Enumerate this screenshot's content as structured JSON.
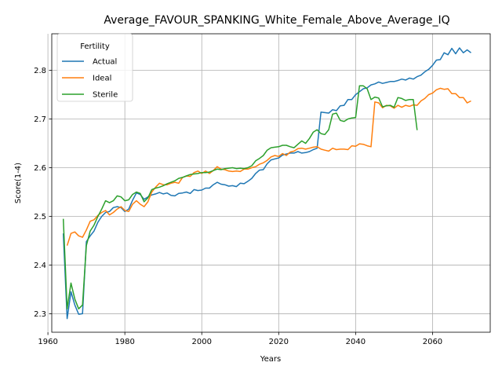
{
  "chart_data": {
    "type": "line",
    "title": "Average_FAVOUR_SPANKING_White_Female_Above_Average_IQ",
    "xlabel": "Years",
    "ylabel": "Score(1-4)",
    "xlim": [
      1961,
      2075
    ],
    "ylim": [
      2.262,
      2.875
    ],
    "xticks": [
      1960,
      1980,
      2000,
      2020,
      2040,
      2060
    ],
    "yticks": [
      2.3,
      2.4,
      2.5,
      2.6,
      2.7,
      2.8
    ],
    "grid": true,
    "legend": {
      "title": "Fertility",
      "position": "top-left"
    },
    "series": [
      {
        "name": "Actual",
        "color": "#1f77b4",
        "x": [
          1964,
          1965,
          1966,
          1967,
          1968,
          1969,
          1970,
          1971,
          1972,
          1973,
          1974,
          1975,
          1976,
          1977,
          1978,
          1979,
          1980,
          1981,
          1982,
          1983,
          1984,
          1985,
          1986,
          1987,
          1988,
          1989,
          1990,
          1991,
          1992,
          1993,
          1994,
          1995,
          1996,
          1997,
          1998,
          1999,
          2000,
          2001,
          2002,
          2003,
          2004,
          2005,
          2006,
          2007,
          2008,
          2009,
          2010,
          2011,
          2012,
          2013,
          2014,
          2015,
          2016,
          2017,
          2018,
          2019,
          2020,
          2021,
          2022,
          2023,
          2024,
          2025,
          2026,
          2027,
          2028,
          2029,
          2030,
          2031,
          2032,
          2033,
          2034,
          2035,
          2036,
          2037,
          2038,
          2039,
          2040,
          2041,
          2042,
          2043,
          2044,
          2045,
          2046,
          2047,
          2048,
          2049,
          2050,
          2051,
          2052,
          2053,
          2054,
          2055,
          2056,
          2057,
          2058,
          2059,
          2060,
          2061,
          2062,
          2063,
          2064,
          2065,
          2066,
          2067,
          2068,
          2069,
          2070
        ],
        "y": [
          2.465,
          2.29,
          2.345,
          2.318,
          2.299,
          2.3,
          2.448,
          2.46,
          2.47,
          2.488,
          2.5,
          2.508,
          2.51,
          2.518,
          2.52,
          2.518,
          2.51,
          2.515,
          2.533,
          2.548,
          2.545,
          2.535,
          2.54,
          2.544,
          2.546,
          2.549,
          2.546,
          2.548,
          2.543,
          2.542,
          2.547,
          2.548,
          2.55,
          2.547,
          2.555,
          2.553,
          2.554,
          2.558,
          2.558,
          2.565,
          2.57,
          2.566,
          2.565,
          2.562,
          2.563,
          2.561,
          2.568,
          2.567,
          2.572,
          2.578,
          2.588,
          2.595,
          2.596,
          2.608,
          2.616,
          2.618,
          2.62,
          2.626,
          2.628,
          2.63,
          2.63,
          2.633,
          2.63,
          2.631,
          2.633,
          2.637,
          2.64,
          2.714,
          2.713,
          2.712,
          2.719,
          2.717,
          2.727,
          2.728,
          2.74,
          2.74,
          2.75,
          2.756,
          2.762,
          2.764,
          2.77,
          2.772,
          2.776,
          2.773,
          2.775,
          2.777,
          2.777,
          2.779,
          2.782,
          2.78,
          2.784,
          2.782,
          2.787,
          2.79,
          2.797,
          2.802,
          2.81,
          2.821,
          2.822,
          2.836,
          2.832,
          2.845,
          2.834,
          2.846,
          2.836,
          2.842,
          2.836
        ]
      },
      {
        "name": "Ideal",
        "color": "#ff7f0e",
        "x": [
          1965,
          1966,
          1967,
          1968,
          1969,
          1970,
          1971,
          1972,
          1973,
          1974,
          1975,
          1976,
          1977,
          1978,
          1979,
          1980,
          1981,
          1982,
          1983,
          1984,
          1985,
          1986,
          1987,
          1988,
          1989,
          1990,
          1991,
          1992,
          1993,
          1994,
          1995,
          1996,
          1997,
          1998,
          1999,
          2000,
          2001,
          2002,
          2003,
          2004,
          2005,
          2006,
          2007,
          2008,
          2009,
          2010,
          2011,
          2012,
          2013,
          2014,
          2015,
          2016,
          2017,
          2018,
          2019,
          2020,
          2021,
          2022,
          2023,
          2024,
          2025,
          2026,
          2027,
          2028,
          2029,
          2030,
          2031,
          2032,
          2033,
          2034,
          2035,
          2036,
          2037,
          2038,
          2039,
          2040,
          2041,
          2042,
          2043,
          2044,
          2045,
          2046,
          2047,
          2048,
          2049,
          2050,
          2051,
          2052,
          2053,
          2054,
          2055,
          2056,
          2057,
          2058,
          2059,
          2060,
          2061,
          2062,
          2063,
          2064,
          2065,
          2066,
          2067,
          2068,
          2069,
          2070
        ],
        "y": [
          2.44,
          2.465,
          2.468,
          2.46,
          2.457,
          2.472,
          2.49,
          2.493,
          2.502,
          2.508,
          2.512,
          2.503,
          2.508,
          2.515,
          2.52,
          2.512,
          2.51,
          2.525,
          2.532,
          2.525,
          2.52,
          2.53,
          2.55,
          2.56,
          2.568,
          2.565,
          2.565,
          2.568,
          2.57,
          2.568,
          2.58,
          2.583,
          2.582,
          2.59,
          2.593,
          2.588,
          2.593,
          2.588,
          2.594,
          2.602,
          2.597,
          2.596,
          2.593,
          2.592,
          2.593,
          2.592,
          2.597,
          2.597,
          2.6,
          2.602,
          2.607,
          2.61,
          2.615,
          2.622,
          2.625,
          2.623,
          2.629,
          2.625,
          2.632,
          2.634,
          2.639,
          2.64,
          2.638,
          2.64,
          2.642,
          2.643,
          2.638,
          2.636,
          2.634,
          2.64,
          2.637,
          2.638,
          2.638,
          2.637,
          2.645,
          2.644,
          2.649,
          2.648,
          2.645,
          2.643,
          2.735,
          2.733,
          2.723,
          2.728,
          2.727,
          2.722,
          2.728,
          2.724,
          2.728,
          2.726,
          2.729,
          2.728,
          2.737,
          2.742,
          2.75,
          2.753,
          2.76,
          2.763,
          2.761,
          2.762,
          2.752,
          2.752,
          2.744,
          2.744,
          2.733,
          2.737
        ]
      },
      {
        "name": "Sterile",
        "color": "#2ca02c",
        "x": [
          1964,
          1965,
          1966,
          1967,
          1968,
          1969,
          1970,
          1971,
          1972,
          1973,
          1974,
          1975,
          1976,
          1977,
          1978,
          1979,
          1980,
          1981,
          1982,
          1983,
          1984,
          1985,
          1986,
          1987,
          1988,
          1989,
          1990,
          1991,
          1992,
          1993,
          1994,
          1995,
          1996,
          1997,
          1998,
          1999,
          2000,
          2001,
          2002,
          2003,
          2004,
          2005,
          2006,
          2007,
          2008,
          2009,
          2010,
          2011,
          2012,
          2013,
          2014,
          2015,
          2016,
          2017,
          2018,
          2019,
          2020,
          2021,
          2022,
          2023,
          2024,
          2025,
          2026,
          2027,
          2028,
          2029,
          2030,
          2031,
          2032,
          2033,
          2034,
          2035,
          2036,
          2037,
          2038,
          2039,
          2040,
          2041,
          2042,
          2043,
          2044,
          2045,
          2046,
          2047,
          2048,
          2049,
          2050,
          2051,
          2052,
          2053,
          2054,
          2055,
          2056
        ],
        "y": [
          2.495,
          2.31,
          2.363,
          2.33,
          2.31,
          2.318,
          2.44,
          2.47,
          2.482,
          2.5,
          2.515,
          2.532,
          2.528,
          2.532,
          2.542,
          2.54,
          2.532,
          2.534,
          2.545,
          2.55,
          2.547,
          2.53,
          2.538,
          2.555,
          2.558,
          2.56,
          2.563,
          2.567,
          2.57,
          2.573,
          2.578,
          2.58,
          2.583,
          2.586,
          2.587,
          2.588,
          2.59,
          2.59,
          2.591,
          2.594,
          2.597,
          2.596,
          2.598,
          2.599,
          2.6,
          2.598,
          2.599,
          2.598,
          2.6,
          2.604,
          2.614,
          2.619,
          2.625,
          2.636,
          2.641,
          2.642,
          2.643,
          2.646,
          2.646,
          2.643,
          2.641,
          2.648,
          2.655,
          2.65,
          2.66,
          2.673,
          2.678,
          2.67,
          2.668,
          2.678,
          2.71,
          2.712,
          2.697,
          2.695,
          2.7,
          2.702,
          2.703,
          2.768,
          2.768,
          2.762,
          2.74,
          2.745,
          2.743,
          2.725,
          2.727,
          2.728,
          2.724,
          2.744,
          2.742,
          2.738,
          2.74,
          2.74,
          2.677
        ]
      }
    ]
  }
}
